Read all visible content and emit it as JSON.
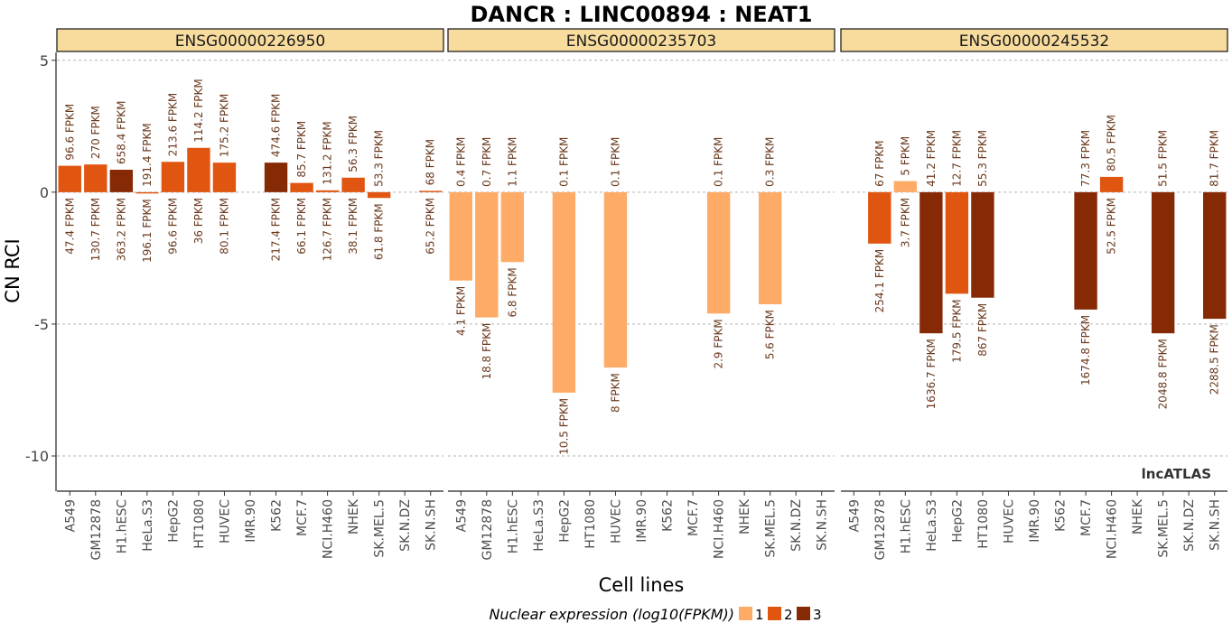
{
  "chart_data": {
    "type": "bar",
    "title": "DANCR : LINC00894 : NEAT1",
    "xlabel": "Cell lines",
    "ylabel": "CN RCI",
    "ylim": [
      -11.3,
      5.3
    ],
    "yticks": [
      5,
      0,
      -5,
      -10
    ],
    "grid": true,
    "watermark": "lncATLAS",
    "categories": [
      "A549",
      "GM12878",
      "H1.hESC",
      "HeLa.S3",
      "HepG2",
      "HT1080",
      "HUVEC",
      "IMR.90",
      "K562",
      "MCF.7",
      "NCI.H460",
      "NHEK",
      "SK.MEL.5",
      "SK.N.DZ",
      "SK.N.SH"
    ],
    "legend": {
      "title": "Nuclear expression (log10(FPKM))",
      "position": "bottom",
      "levels": [
        {
          "label": "1",
          "color": "#fdab67"
        },
        {
          "label": "2",
          "color": "#e0550f"
        },
        {
          "label": "3",
          "color": "#862a05"
        }
      ]
    },
    "panels": [
      {
        "name": "ENSG00000226950",
        "values": [
          1.0,
          1.05,
          0.85,
          -0.05,
          1.15,
          1.68,
          1.12,
          null,
          1.12,
          0.35,
          0.07,
          0.55,
          -0.22,
          null,
          0.05
        ],
        "levels": [
          2,
          2,
          3,
          2,
          2,
          2,
          2,
          null,
          3,
          2,
          2,
          2,
          2,
          null,
          2
        ],
        "cyto_labels": [
          "96.6 FPKM",
          "270 FPKM",
          "658.4 FPKM",
          "191.4 FPKM",
          "213.6 FPKM",
          "114.2 FPKM",
          "175.2 FPKM",
          "",
          "474.6 FPKM",
          "85.7 FPKM",
          "131.2 FPKM",
          "56.3 FPKM",
          "53.3 FPKM",
          "",
          "68 FPKM"
        ],
        "nuc_labels": [
          "47.4 FPKM",
          "130.7 FPKM",
          "363.2 FPKM",
          "196.1 FPKM",
          "96.6 FPKM",
          "36 FPKM",
          "80.1 FPKM",
          "",
          "217.4 FPKM",
          "66.1 FPKM",
          "126.7 FPKM",
          "38.1 FPKM",
          "61.8 FPKM",
          "",
          "65.2 FPKM"
        ]
      },
      {
        "name": "ENSG00000235703",
        "values": [
          -3.35,
          -4.75,
          -2.65,
          null,
          -7.6,
          null,
          -6.65,
          null,
          null,
          null,
          -4.6,
          null,
          -4.25,
          null,
          null
        ],
        "levels": [
          1,
          1,
          1,
          null,
          1,
          null,
          1,
          null,
          null,
          null,
          1,
          null,
          1,
          null,
          null
        ],
        "cyto_labels": [
          "0.4 FPKM",
          "0.7 FPKM",
          "1.1 FPKM",
          "",
          "0.1 FPKM",
          "",
          "0.1 FPKM",
          "",
          "",
          "",
          "0.1 FPKM",
          "",
          "0.3 FPKM",
          "",
          ""
        ],
        "nuc_labels": [
          "4.1 FPKM",
          "18.8 FPKM",
          "6.8 FPKM",
          "",
          "10.5 FPKM",
          "",
          "8 FPKM",
          "",
          "",
          "",
          "2.9 FPKM",
          "",
          "5.6 FPKM",
          "",
          ""
        ]
      },
      {
        "name": "ENSG00000245532",
        "values": [
          null,
          -1.95,
          0.42,
          -5.35,
          -3.85,
          -4.0,
          null,
          null,
          null,
          -4.45,
          0.58,
          null,
          -5.35,
          null,
          -4.8
        ],
        "levels": [
          null,
          2,
          1,
          3,
          2,
          3,
          null,
          null,
          null,
          3,
          2,
          null,
          3,
          null,
          3
        ],
        "cyto_labels": [
          "",
          "67 FPKM",
          "5 FPKM",
          "41.2 FPKM",
          "12.7 FPKM",
          "55.3 FPKM",
          "",
          "",
          "",
          "77.3 FPKM",
          "80.5 FPKM",
          "",
          "51.5 FPKM",
          "",
          "81.7 FPKM"
        ],
        "nuc_labels": [
          "",
          "254.1 FPKM",
          "3.7 FPKM",
          "1636.7 FPKM",
          "179.5 FPKM",
          "867 FPKM",
          "",
          "",
          "",
          "1674.8 FPKM",
          "52.5 FPKM",
          "",
          "2048.8 FPKM",
          "",
          "2288.5 FPKM"
        ]
      }
    ]
  }
}
